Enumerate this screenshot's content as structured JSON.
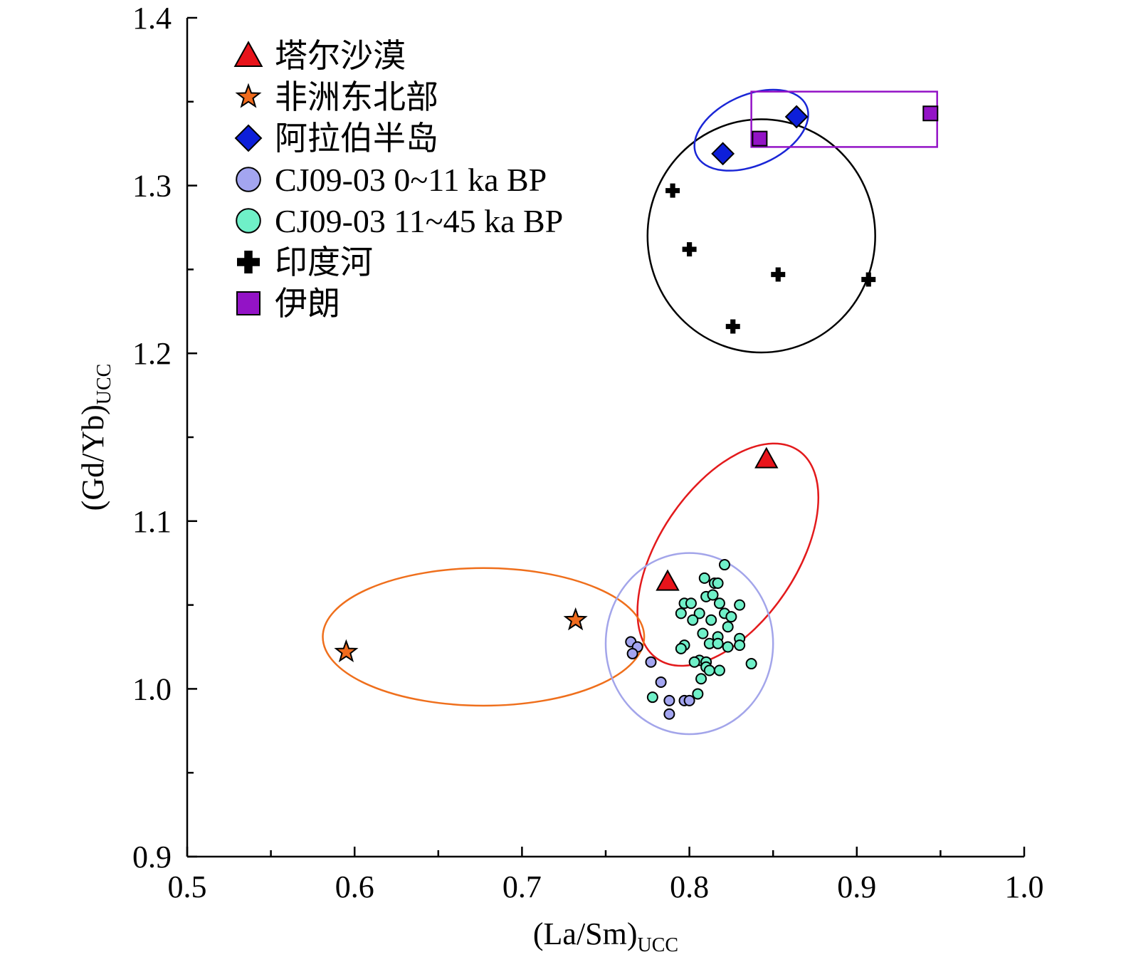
{
  "chart_data": {
    "type": "scatter",
    "title": "",
    "xlabel": {
      "main": "(La/Sm)",
      "sub": "UCC"
    },
    "ylabel": {
      "main": "(Gd/Yb)",
      "sub": "UCC"
    },
    "xlim": [
      0.5,
      1.0
    ],
    "ylim": [
      0.9,
      1.4
    ],
    "x_ticks": [
      "0.5",
      "0.6",
      "0.7",
      "0.8",
      "0.9",
      "1.0"
    ],
    "x_tick_values": [
      0.5,
      0.6,
      0.7,
      0.8,
      0.9,
      1.0
    ],
    "x_minor_ticks": [
      0.55,
      0.65,
      0.75,
      0.85,
      0.95
    ],
    "y_ticks": [
      "0.9",
      "1.0",
      "1.1",
      "1.2",
      "1.3",
      "1.4"
    ],
    "y_tick_values": [
      0.9,
      1.0,
      1.1,
      1.2,
      1.3,
      1.4
    ],
    "y_minor_ticks": [
      0.95,
      1.05,
      1.15,
      1.25,
      1.35
    ],
    "grid": false,
    "legend": {
      "placement": "top-left"
    },
    "series": [
      {
        "name": "塔尔沙漠",
        "marker": "triangle",
        "color": "#e8141b",
        "points": [
          [
            0.787,
            1.064
          ],
          [
            0.846,
            1.137
          ]
        ]
      },
      {
        "name": "非洲东北部",
        "marker": "star",
        "color": "#f06b1e",
        "points": [
          [
            0.595,
            1.022
          ],
          [
            0.732,
            1.041
          ]
        ]
      },
      {
        "name": "阿拉伯半岛",
        "marker": "diamond",
        "color": "#0d1fd9",
        "points": [
          [
            0.82,
            1.319
          ],
          [
            0.864,
            1.341
          ]
        ]
      },
      {
        "name": "CJ09-03 0~11 ka BP",
        "marker": "circle",
        "color": "#a3a5f0",
        "points": [
          [
            0.765,
            1.028
          ],
          [
            0.769,
            1.025
          ],
          [
            0.766,
            1.021
          ],
          [
            0.777,
            1.016
          ],
          [
            0.783,
            1.004
          ],
          [
            0.788,
            0.993
          ],
          [
            0.788,
            0.985
          ],
          [
            0.797,
            0.993
          ],
          [
            0.8,
            0.993
          ]
        ]
      },
      {
        "name": "CJ09-03 11~45 ka BP",
        "marker": "circle",
        "color": "#6ff0c8",
        "points": [
          [
            0.821,
            1.074
          ],
          [
            0.809,
            1.066
          ],
          [
            0.815,
            1.063
          ],
          [
            0.817,
            1.063
          ],
          [
            0.81,
            1.055
          ],
          [
            0.814,
            1.056
          ],
          [
            0.797,
            1.051
          ],
          [
            0.801,
            1.051
          ],
          [
            0.818,
            1.051
          ],
          [
            0.83,
            1.05
          ],
          [
            0.795,
            1.045
          ],
          [
            0.806,
            1.045
          ],
          [
            0.821,
            1.045
          ],
          [
            0.825,
            1.043
          ],
          [
            0.802,
            1.041
          ],
          [
            0.813,
            1.041
          ],
          [
            0.823,
            1.037
          ],
          [
            0.808,
            1.033
          ],
          [
            0.817,
            1.031
          ],
          [
            0.83,
            1.03
          ],
          [
            0.812,
            1.027
          ],
          [
            0.817,
            1.027
          ],
          [
            0.797,
            1.026
          ],
          [
            0.823,
            1.025
          ],
          [
            0.83,
            1.026
          ],
          [
            0.795,
            1.024
          ],
          [
            0.806,
            1.017
          ],
          [
            0.803,
            1.016
          ],
          [
            0.81,
            1.016
          ],
          [
            0.81,
            1.013
          ],
          [
            0.837,
            1.015
          ],
          [
            0.812,
            1.011
          ],
          [
            0.818,
            1.011
          ],
          [
            0.807,
            1.006
          ],
          [
            0.805,
            0.997
          ],
          [
            0.778,
            0.995
          ]
        ]
      },
      {
        "name": "印度河",
        "marker": "plus",
        "color": "#000000",
        "points": [
          [
            0.79,
            1.297
          ],
          [
            0.8,
            1.262
          ],
          [
            0.853,
            1.247
          ],
          [
            0.907,
            1.244
          ],
          [
            0.826,
            1.216
          ]
        ]
      },
      {
        "name": "伊朗",
        "marker": "square",
        "color": "#9313c6",
        "points": [
          [
            0.842,
            1.328
          ],
          [
            0.944,
            1.343
          ]
        ]
      }
    ],
    "annotations": [
      {
        "shape": "ellipse",
        "color": "#000000",
        "center": [
          0.843,
          1.27
        ],
        "radii": [
          0.068,
          0.0695
        ],
        "rotation": 0
      },
      {
        "shape": "ellipse",
        "color": "#1a26d6",
        "center": [
          0.837,
          1.333
        ],
        "radii": [
          0.036,
          0.021
        ],
        "rotation": -24
      },
      {
        "shape": "rect",
        "color": "#9313c6",
        "x": [
          0.837,
          0.948
        ],
        "y": [
          1.323,
          1.356
        ]
      },
      {
        "shape": "ellipse",
        "color": "#e31a1c",
        "center": [
          0.823,
          1.08
        ],
        "radii": [
          0.041,
          0.075
        ],
        "rotation": 34
      },
      {
        "shape": "ellipse",
        "color": "#ef6f1c",
        "center": [
          0.677,
          1.031
        ],
        "radii": [
          0.096,
          0.041
        ],
        "rotation": 0
      },
      {
        "shape": "ellipse",
        "color": "#a3a5ea",
        "center": [
          0.8,
          1.027
        ],
        "radii": [
          0.05,
          0.054
        ],
        "rotation": 0
      }
    ]
  }
}
